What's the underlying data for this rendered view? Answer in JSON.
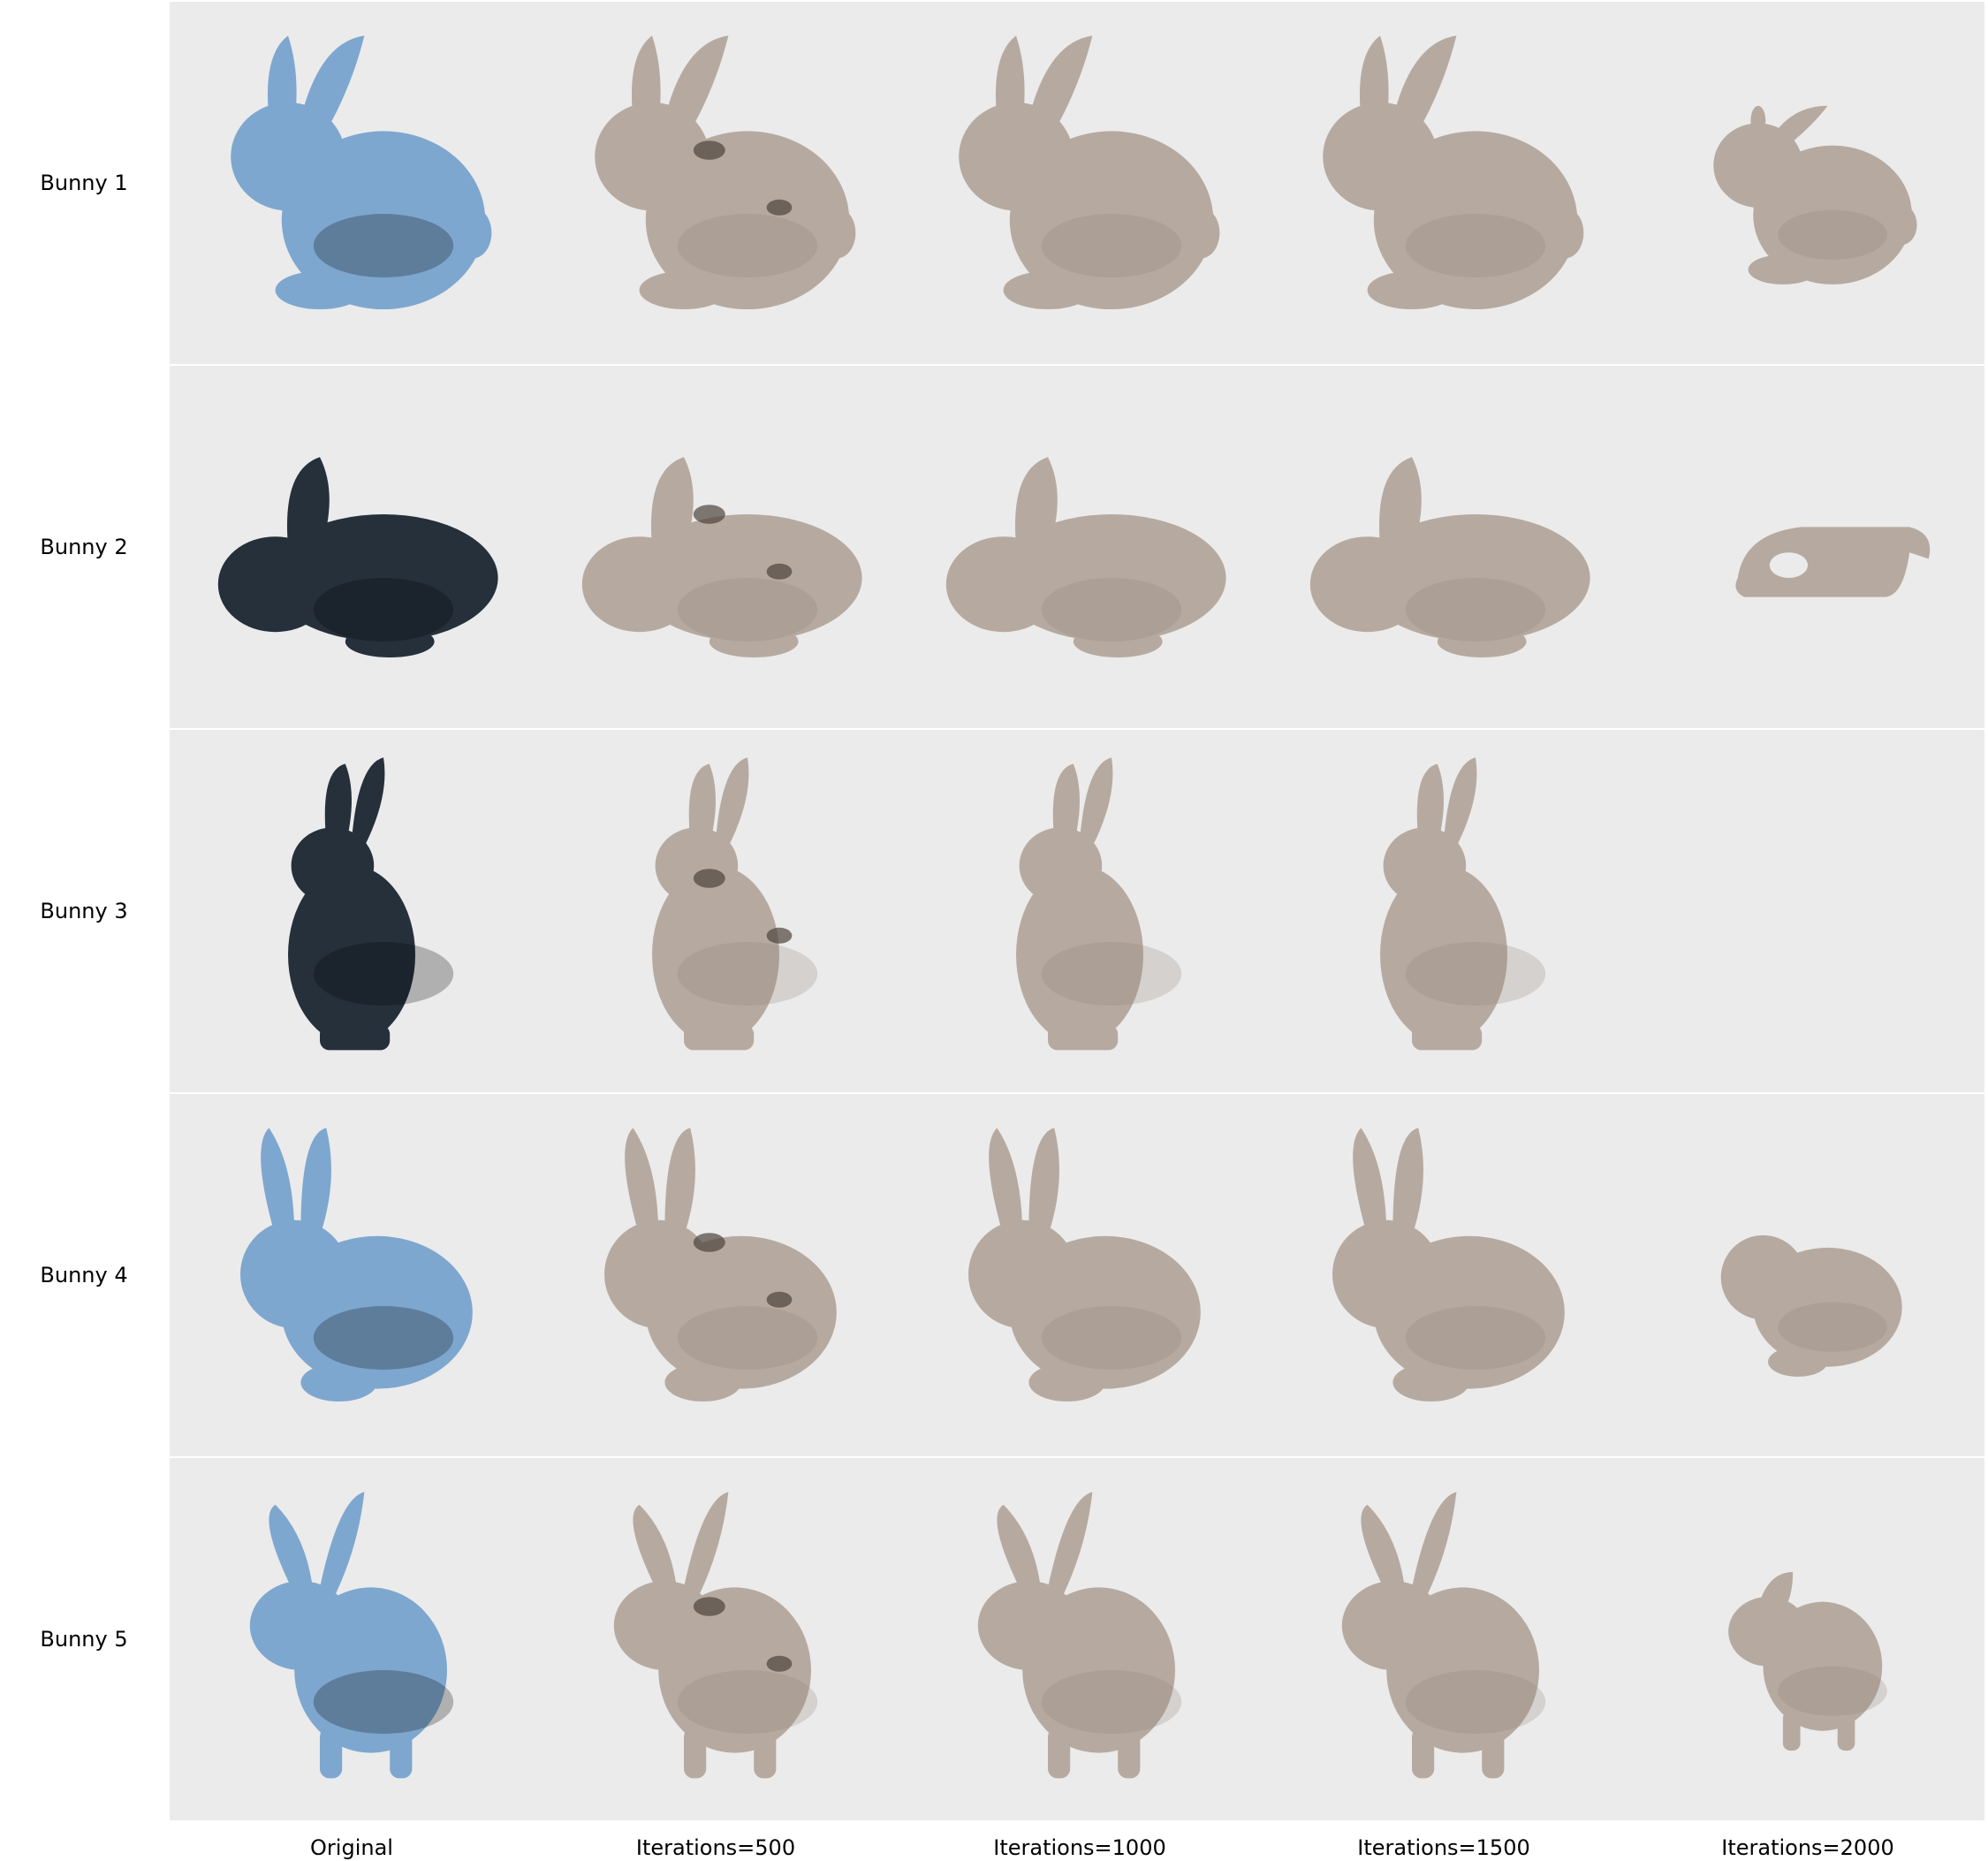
{
  "row_labels": [
    "Bunny 1",
    "Bunny 2",
    "Bunny 3",
    "Bunny 4",
    "Bunny 5"
  ],
  "column_labels": [
    "Original",
    "Iterations=500",
    "Iterations=1000",
    "Iterations=1500",
    "Iterations=2000"
  ],
  "colors": {
    "panel_background": "#ebebeb",
    "original_blue": "#7ea7cf",
    "original_dark": "#25303b",
    "reconstruction": "#b6aaa0",
    "reconstruction_shadow": "#8f8379",
    "defect": "#4e433c"
  },
  "cells": [
    {
      "row": 0,
      "col": 0,
      "kind": "original",
      "color": "blue",
      "pose": "sitting-left"
    },
    {
      "row": 0,
      "col": 1,
      "kind": "reconstruction",
      "pose": "sitting-left",
      "defects": true
    },
    {
      "row": 0,
      "col": 2,
      "kind": "reconstruction",
      "pose": "sitting-left"
    },
    {
      "row": 0,
      "col": 3,
      "kind": "reconstruction",
      "pose": "sitting-left"
    },
    {
      "row": 0,
      "col": 4,
      "kind": "reconstruction",
      "pose": "sitting-left",
      "degraded": true
    },
    {
      "row": 1,
      "col": 0,
      "kind": "original",
      "color": "dark",
      "pose": "crouching"
    },
    {
      "row": 1,
      "col": 1,
      "kind": "reconstruction",
      "pose": "crouching",
      "defects": true
    },
    {
      "row": 1,
      "col": 2,
      "kind": "reconstruction",
      "pose": "crouching"
    },
    {
      "row": 1,
      "col": 3,
      "kind": "reconstruction",
      "pose": "crouching"
    },
    {
      "row": 1,
      "col": 4,
      "kind": "fragment"
    },
    {
      "row": 2,
      "col": 0,
      "kind": "original",
      "color": "dark",
      "pose": "upright"
    },
    {
      "row": 2,
      "col": 1,
      "kind": "reconstruction",
      "pose": "upright",
      "defects": true
    },
    {
      "row": 2,
      "col": 2,
      "kind": "reconstruction",
      "pose": "upright"
    },
    {
      "row": 2,
      "col": 3,
      "kind": "reconstruction",
      "pose": "upright"
    },
    {
      "row": 2,
      "col": 4,
      "kind": "empty"
    },
    {
      "row": 3,
      "col": 0,
      "kind": "original",
      "color": "blue",
      "pose": "tall-ears"
    },
    {
      "row": 3,
      "col": 1,
      "kind": "reconstruction",
      "pose": "tall-ears",
      "defects": true
    },
    {
      "row": 3,
      "col": 2,
      "kind": "reconstruction",
      "pose": "tall-ears"
    },
    {
      "row": 3,
      "col": 3,
      "kind": "reconstruction",
      "pose": "tall-ears"
    },
    {
      "row": 3,
      "col": 4,
      "kind": "reconstruction",
      "pose": "tall-ears",
      "degraded": true
    },
    {
      "row": 4,
      "col": 0,
      "kind": "original",
      "color": "blue",
      "pose": "standing"
    },
    {
      "row": 4,
      "col": 1,
      "kind": "reconstruction",
      "pose": "standing",
      "defects": true
    },
    {
      "row": 4,
      "col": 2,
      "kind": "reconstruction",
      "pose": "standing"
    },
    {
      "row": 4,
      "col": 3,
      "kind": "reconstruction",
      "pose": "standing"
    },
    {
      "row": 4,
      "col": 4,
      "kind": "reconstruction",
      "pose": "standing",
      "degraded": true
    }
  ]
}
